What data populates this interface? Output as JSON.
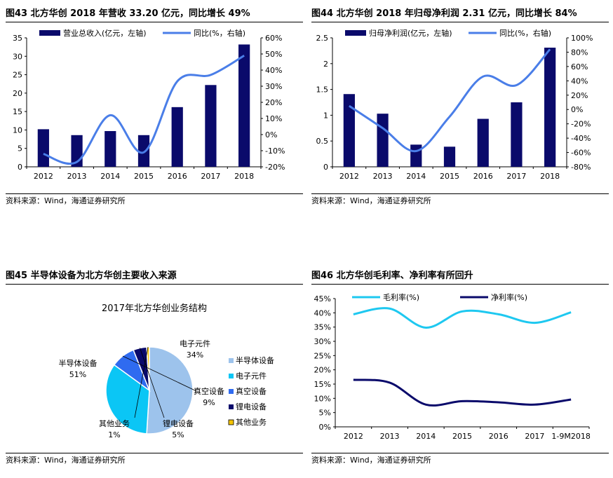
{
  "source_note": "资料来源：Wind，海通证券研究所",
  "chart_data": [
    {
      "id": "fig43",
      "figure_title": "图43 北方华创 2018 年营收 33.20 亿元，同比增长 49%",
      "type": "bar+line",
      "categories": [
        "2012",
        "2013",
        "2014",
        "2015",
        "2016",
        "2017",
        "2018"
      ],
      "series": [
        {
          "name": "营业总收入(亿元，左轴)",
          "type": "bar",
          "axis": "left",
          "color": "#0a0a6b",
          "values": [
            10.2,
            8.6,
            9.7,
            8.6,
            16.2,
            22.2,
            33.2
          ]
        },
        {
          "name": "同比(%，右轴)",
          "type": "line",
          "axis": "right",
          "color": "#4a7ee8",
          "values": [
            -12,
            -17,
            12,
            -11,
            33,
            37,
            49
          ]
        }
      ],
      "ylim_left": [
        0,
        35
      ],
      "yticks_left": [
        "0",
        "5",
        "10",
        "15",
        "20",
        "25",
        "30",
        "35"
      ],
      "ylim_right": [
        -20,
        60
      ],
      "yticks_right": [
        "-20%",
        "-10%",
        "0%",
        "10%",
        "20%",
        "30%",
        "40%",
        "50%",
        "60%"
      ]
    },
    {
      "id": "fig44",
      "figure_title": "图44 北方华创 2018 年归母净利润 2.31 亿元，同比增长 84%",
      "type": "bar+line",
      "categories": [
        "2012",
        "2013",
        "2014",
        "2015",
        "2016",
        "2017",
        "2018"
      ],
      "series": [
        {
          "name": "归母净利润(亿元，左轴)",
          "type": "bar",
          "axis": "left",
          "color": "#0a0a6b",
          "values": [
            1.41,
            1.03,
            0.43,
            0.39,
            0.93,
            1.25,
            2.31
          ]
        },
        {
          "name": "同比(%，右轴)",
          "type": "line",
          "axis": "right",
          "color": "#4a7ee8",
          "values": [
            5,
            -26,
            -58,
            -10,
            46,
            34,
            84
          ]
        }
      ],
      "ylim_left": [
        0,
        2.5
      ],
      "yticks_left": [
        "0",
        "0.5",
        "1",
        "1.5",
        "2",
        "2.5"
      ],
      "ylim_right": [
        -80,
        100
      ],
      "yticks_right": [
        "-80%",
        "-60%",
        "-40%",
        "-20%",
        "0%",
        "20%",
        "40%",
        "60%",
        "80%",
        "100%"
      ]
    },
    {
      "id": "fig45",
      "figure_title": "图45 半导体设备为北方华创主要收入来源",
      "type": "pie",
      "title": "2017年北方华创业务结构",
      "slices": [
        {
          "name": "半导体设备",
          "value": 51,
          "label": "51%",
          "color": "#9dc3ec"
        },
        {
          "name": "电子元件",
          "value": 34,
          "label": "34%",
          "color": "#0bc6f5"
        },
        {
          "name": "真空设备",
          "value": 9,
          "label": "9%",
          "color": "#2f6bf0"
        },
        {
          "name": "锂电设备",
          "value": 5,
          "label": "5%",
          "color": "#0a0a6b"
        },
        {
          "name": "其他业务",
          "value": 1,
          "label": "1%",
          "color": "#f5c400"
        }
      ]
    },
    {
      "id": "fig46",
      "figure_title": "图46 北方华创毛利率、净利率有所回升",
      "type": "line",
      "categories": [
        "2012",
        "2013",
        "2014",
        "2015",
        "2016",
        "2017",
        "1-9M2018"
      ],
      "series": [
        {
          "name": "毛利率(%)",
          "color": "#1ec8f0",
          "values": [
            39.5,
            41.5,
            34.8,
            40.5,
            39.5,
            36.5,
            40.2
          ]
        },
        {
          "name": "净利率(%)",
          "color": "#0a0a6b",
          "values": [
            16.5,
            15.5,
            7.8,
            9.0,
            8.6,
            7.8,
            9.6
          ]
        }
      ],
      "ylim": [
        0,
        45
      ],
      "yticks": [
        "0%",
        "5%",
        "10%",
        "15%",
        "20%",
        "25%",
        "30%",
        "35%",
        "40%",
        "45%"
      ]
    }
  ]
}
